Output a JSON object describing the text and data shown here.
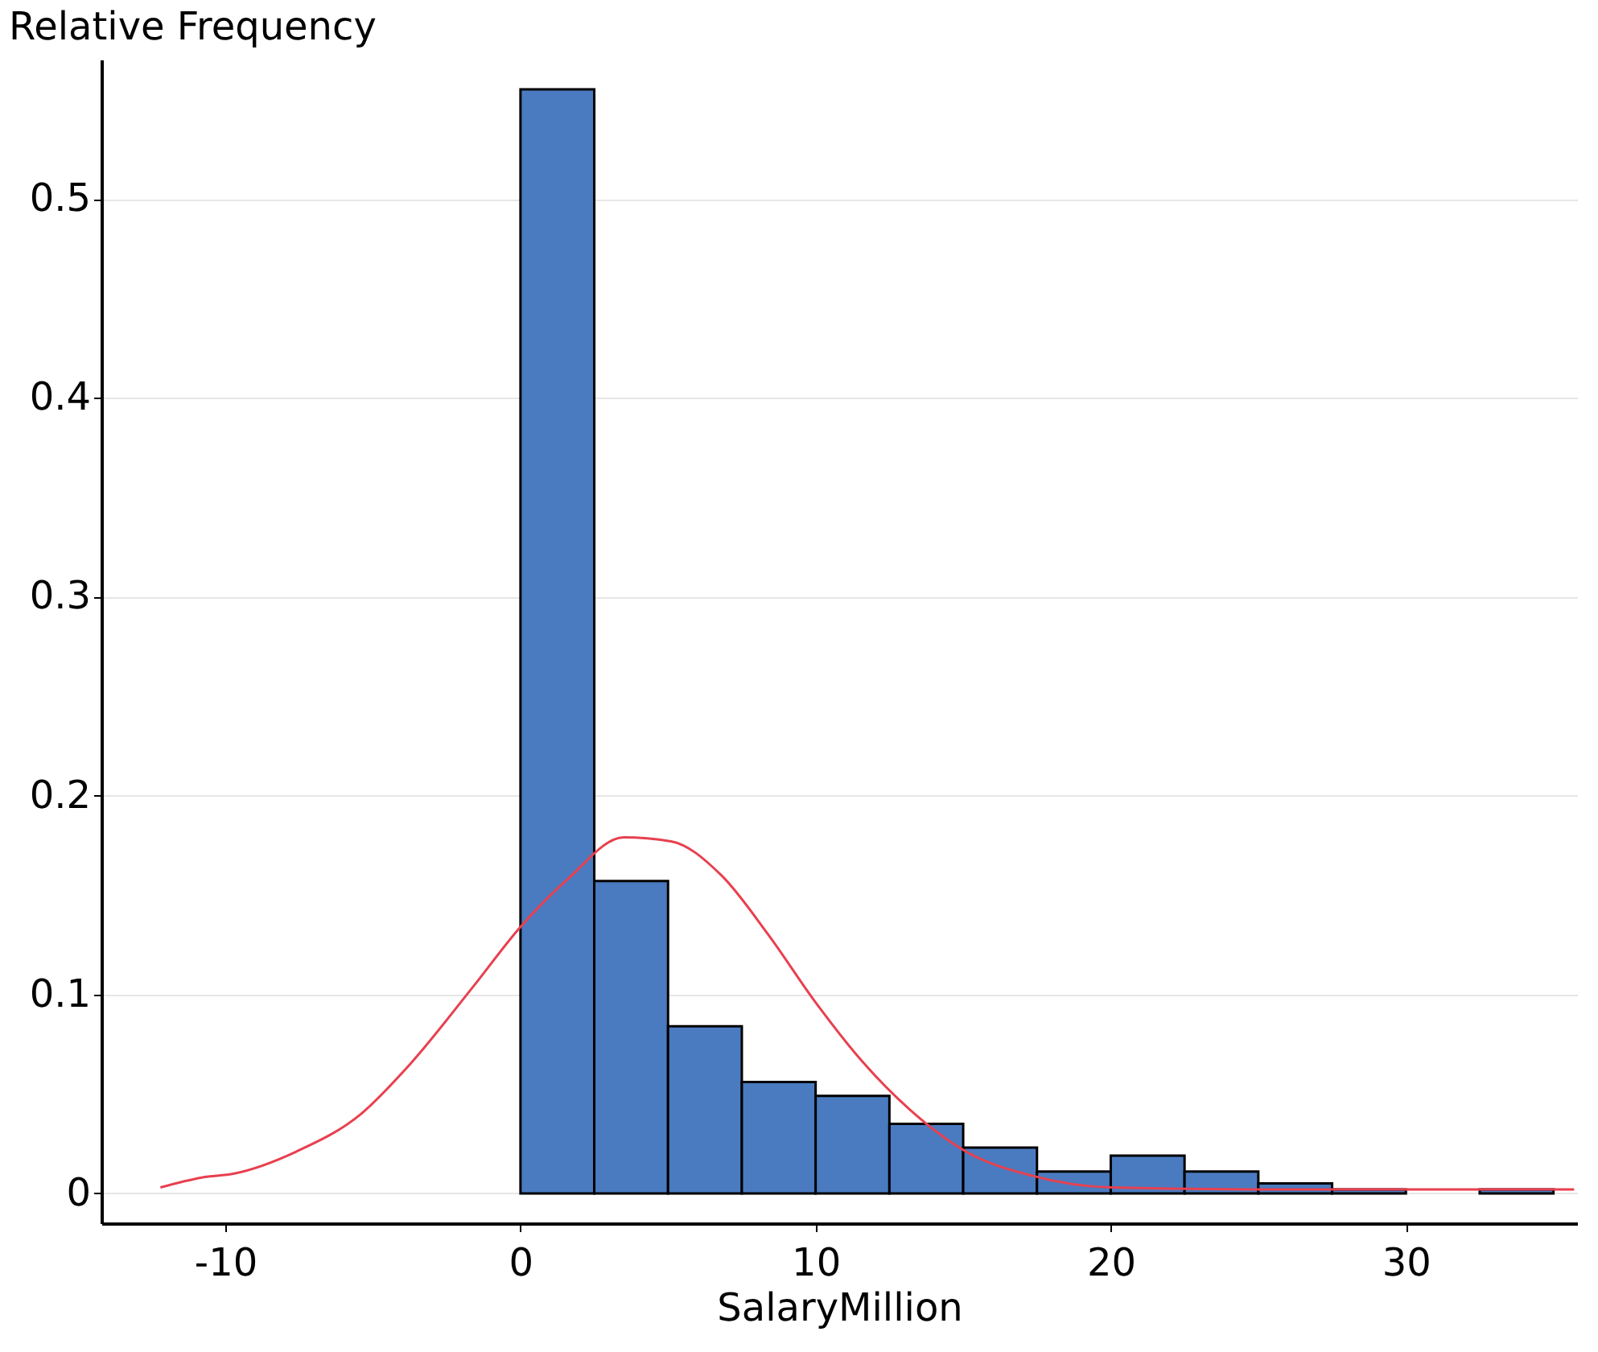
{
  "chart_data": {
    "type": "histogram",
    "ylabel": "Relative Frequency",
    "xlabel": "SalaryMillion",
    "xlim": [
      -14.2,
      35.8
    ],
    "xticks": [
      -10,
      0,
      10,
      20,
      30
    ],
    "ylim": [
      -0.015,
      0.57
    ],
    "yticks": [
      0,
      0.1,
      0.2,
      0.3,
      0.4,
      0.5
    ],
    "grid": "y",
    "series": [
      {
        "type": "histogram",
        "color": "#4a7bc0",
        "bins": [
          0,
          2.5,
          5,
          7.5,
          10,
          12.5,
          15,
          17.5,
          20,
          22.5,
          25,
          27.5,
          30,
          32.5,
          35
        ],
        "values": [
          0.555,
          0.157,
          0.084,
          0.056,
          0.049,
          0.035,
          0.023,
          0.011,
          0.019,
          0.011,
          0.005,
          0.002,
          null,
          0.002
        ]
      },
      {
        "type": "line",
        "color": "#e8404f",
        "x": [
          -12.2,
          -10.8,
          -9.7,
          -7.6,
          -5.4,
          -3.8,
          -1.6,
          0,
          1.6,
          3.5,
          5.1,
          6.8,
          8.4,
          10,
          11.6,
          13.2,
          15.1,
          17.3,
          20,
          25.4,
          35.7
        ],
        "values": [
          0.003,
          0.008,
          0.01,
          0.021,
          0.04,
          0.064,
          0.104,
          0.134,
          0.158,
          0.179,
          0.177,
          0.16,
          0.13,
          0.096,
          0.066,
          0.042,
          0.021,
          0.009,
          0.003,
          0.002,
          0.002
        ]
      }
    ]
  }
}
